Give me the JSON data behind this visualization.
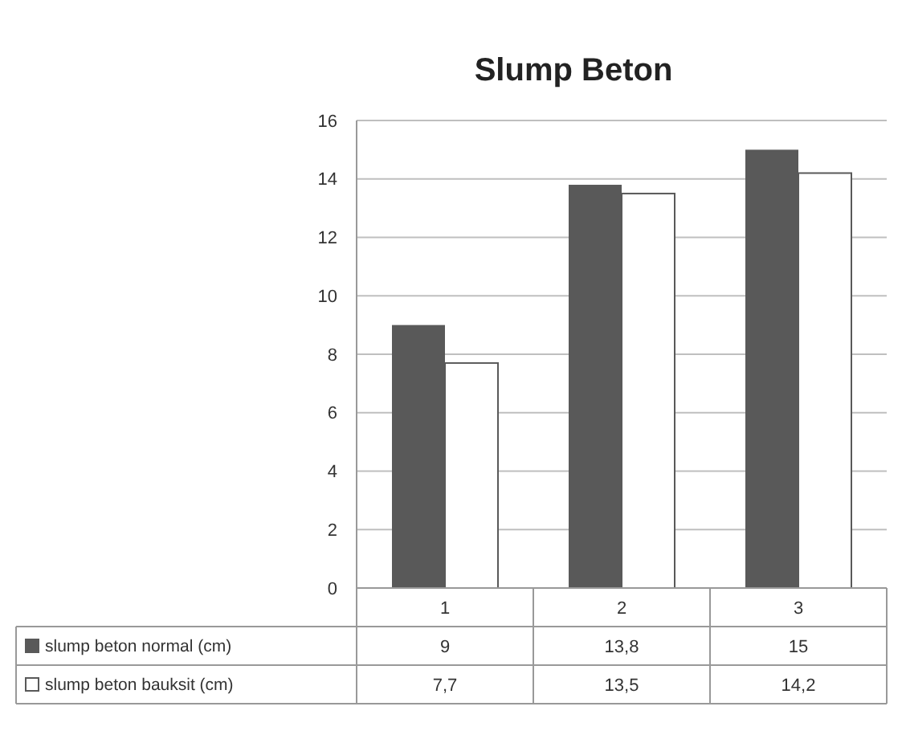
{
  "chart_data": {
    "type": "bar",
    "title": "Slump Beton",
    "categories": [
      "1",
      "2",
      "3"
    ],
    "series": [
      {
        "name": "slump beton normal (cm)",
        "color": "#595959",
        "values": [
          9,
          13.8,
          15
        ],
        "value_labels": [
          "9",
          "13,8",
          "15"
        ]
      },
      {
        "name": "slump beton bauksit (cm)",
        "color": "#ffffff",
        "values": [
          7.7,
          13.5,
          14.2
        ],
        "value_labels": [
          "7,7",
          "13,5",
          "14,2"
        ]
      }
    ],
    "ylim": [
      0,
      16
    ],
    "yticks": [
      0,
      2,
      4,
      6,
      8,
      10,
      12,
      14,
      16
    ],
    "grid": "y",
    "legend": "bottom"
  }
}
